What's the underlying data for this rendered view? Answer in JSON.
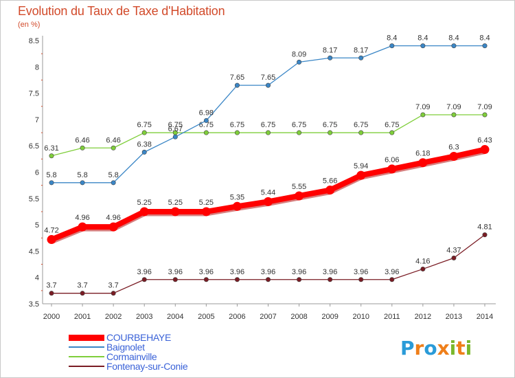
{
  "header": {
    "title": "Evolution du Taux de Taxe d'Habitation",
    "subtitle": "(en %)"
  },
  "chart_data": {
    "type": "line",
    "title": "Evolution du Taux de Taxe d'Habitation",
    "ylabel": "(en %)",
    "xlabel": "",
    "x": [
      "2000",
      "2001",
      "2002",
      "2003",
      "2004",
      "2005",
      "2006",
      "2007",
      "2008",
      "2009",
      "2010",
      "2011",
      "2012",
      "2013",
      "2014"
    ],
    "ylim": [
      3.5,
      8.5
    ],
    "yticks": [
      "3.5",
      "4",
      "4.5",
      "5",
      "5.5",
      "6",
      "6.5",
      "7",
      "7.5",
      "8",
      "8.5"
    ],
    "grid": false,
    "legend_position": "bottom-left",
    "series": [
      {
        "name": "COURBEHAYE",
        "color": "#ff0000",
        "values": [
          4.72,
          4.96,
          4.96,
          5.25,
          5.25,
          5.25,
          5.35,
          5.44,
          5.55,
          5.66,
          5.94,
          6.06,
          6.18,
          6.3,
          6.43
        ],
        "labels": [
          "4.72",
          "4.96",
          "4.96",
          "5.25",
          "5.25",
          "5.25",
          "5.35",
          "5.44",
          "5.55",
          "5.66",
          "5.94",
          "6.06",
          "6.18",
          "6.3",
          "6.43"
        ]
      },
      {
        "name": "Baignolet",
        "color": "#3a86c6",
        "values": [
          5.8,
          5.8,
          5.8,
          6.38,
          6.67,
          6.98,
          7.65,
          7.65,
          8.09,
          8.17,
          8.17,
          8.4,
          8.4,
          8.4,
          8.4
        ],
        "labels": [
          "5.8",
          "5.8",
          "5.8",
          "6.38",
          "6.67",
          "6.98",
          "7.65",
          "7.65",
          "8.09",
          "8.17",
          "8.17",
          "8.4",
          "8.4",
          "8.4",
          "8.4"
        ]
      },
      {
        "name": "Cormainville",
        "color": "#7fce3a",
        "values": [
          6.31,
          6.46,
          6.46,
          6.75,
          6.75,
          6.75,
          6.75,
          6.75,
          6.75,
          6.75,
          6.75,
          6.75,
          7.09,
          7.09,
          7.09
        ],
        "labels": [
          "6.31",
          "6.46",
          "6.46",
          "6.75",
          "6.75",
          "6.75",
          "6.75",
          "6.75",
          "6.75",
          "6.75",
          "6.75",
          "6.75",
          "7.09",
          "7.09",
          "7.09"
        ]
      },
      {
        "name": "Fontenay-sur-Conie",
        "color": "#7a1c24",
        "values": [
          3.7,
          3.7,
          3.7,
          3.96,
          3.96,
          3.96,
          3.96,
          3.96,
          3.96,
          3.96,
          3.96,
          3.96,
          4.16,
          4.37,
          4.81
        ],
        "labels": [
          "3.7",
          "3.7",
          "3.7",
          "3.96",
          "3.96",
          "3.96",
          "3.96",
          "3.96",
          "3.96",
          "3.96",
          "3.96",
          "3.96",
          "4.16",
          "4.37",
          "4.81"
        ]
      }
    ]
  },
  "logo": {
    "letters": [
      "P",
      "r",
      "o",
      "x",
      "i",
      "t",
      "i"
    ],
    "colors": [
      "#2a9bd8",
      "#ef7f1a",
      "#2a9bd8",
      "#ef7f1a",
      "#7ab82c",
      "#ef7f1a",
      "#7ab82c"
    ]
  }
}
